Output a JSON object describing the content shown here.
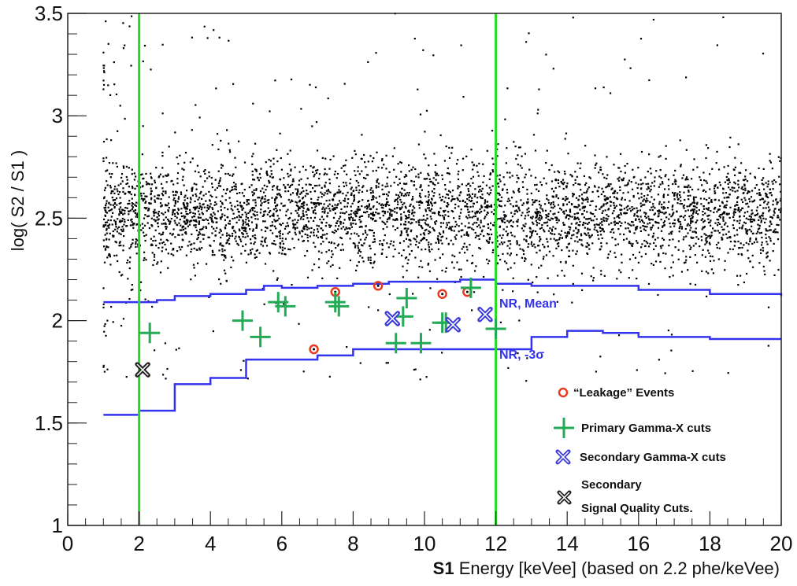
{
  "chart_data": {
    "type": "scatter",
    "xlabel_prefix": "S1",
    "xlabel_rest": " Energy [keVee] (based on 2.2 phe/keVee)",
    "ylabel": "log( S2 / S1 )",
    "xlim": [
      0,
      20
    ],
    "ylim": [
      1,
      3.5
    ],
    "x_ticks": [
      "0",
      "2",
      "4",
      "6",
      "8",
      "10",
      "12",
      "14",
      "16",
      "18",
      "20"
    ],
    "y_ticks": [
      "1",
      "1.5",
      "2",
      "2.5",
      "3",
      "3.5"
    ],
    "grid": false,
    "legend_position": "bottom-right",
    "colors": {
      "background_points": "#000000",
      "threshold_lines": "#22dd22",
      "nr_bands": "#3333ee",
      "leakage": "#e83a1f",
      "primary_cut": "#22aa55",
      "secondary_cut": "#3a3ad8",
      "quality_cut": "#222222"
    },
    "threshold_lines_x": [
      2,
      12
    ],
    "nr_mean": {
      "label": "NR, Mean",
      "steps": [
        [
          1,
          2.09
        ],
        [
          2,
          2.09
        ],
        [
          2.5,
          2.1
        ],
        [
          3,
          2.12
        ],
        [
          4,
          2.13
        ],
        [
          5,
          2.15
        ],
        [
          5.5,
          2.17
        ],
        [
          6,
          2.16
        ],
        [
          7,
          2.17
        ],
        [
          8,
          2.18
        ],
        [
          9,
          2.19
        ],
        [
          10,
          2.19
        ],
        [
          11,
          2.2
        ],
        [
          12,
          2.18
        ],
        [
          13,
          2.17
        ],
        [
          14,
          2.17
        ],
        [
          16,
          2.15
        ],
        [
          18,
          2.13
        ],
        [
          20,
          2.12
        ]
      ]
    },
    "nr_minus3sigma": {
      "label": "NR, -3σ",
      "steps": [
        [
          1,
          1.54
        ],
        [
          2,
          1.56
        ],
        [
          3,
          1.69
        ],
        [
          4,
          1.72
        ],
        [
          5,
          1.81
        ],
        [
          6,
          1.81
        ],
        [
          7,
          1.83
        ],
        [
          8,
          1.86
        ],
        [
          9,
          1.86
        ],
        [
          10,
          1.86
        ],
        [
          11,
          1.86
        ],
        [
          12,
          1.86
        ],
        [
          13,
          1.92
        ],
        [
          14,
          1.95
        ],
        [
          15,
          1.94
        ],
        [
          16,
          1.92
        ],
        [
          18,
          1.91
        ],
        [
          20,
          1.91
        ]
      ]
    },
    "series": [
      {
        "name": "“Leakage” Events",
        "marker": "circle",
        "points": [
          [
            6.9,
            1.86
          ],
          [
            7.5,
            2.14
          ],
          [
            8.7,
            2.17
          ],
          [
            10.5,
            2.13
          ],
          [
            11.2,
            2.14
          ]
        ]
      },
      {
        "name": "Primary Gamma-X cuts",
        "marker": "plus",
        "points": [
          [
            2.3,
            1.94
          ],
          [
            4.9,
            2.0
          ],
          [
            5.4,
            1.92
          ],
          [
            5.9,
            2.09
          ],
          [
            6.1,
            2.07
          ],
          [
            7.5,
            2.09
          ],
          [
            7.6,
            2.07
          ],
          [
            9.2,
            1.89
          ],
          [
            9.4,
            2.02
          ],
          [
            9.5,
            2.11
          ],
          [
            9.9,
            1.89
          ],
          [
            10.5,
            1.99
          ],
          [
            10.6,
            1.99
          ],
          [
            11.3,
            2.16
          ],
          [
            12.0,
            1.96
          ]
        ]
      },
      {
        "name": "Secondary Gamma-X cuts",
        "marker": "xcross",
        "points": [
          [
            9.1,
            2.01
          ],
          [
            10.8,
            1.98
          ],
          [
            11.7,
            2.03
          ]
        ]
      },
      {
        "name_line1": "Secondary",
        "name_line2": "Signal Quality Cuts.",
        "marker": "xcross-dark",
        "points": [
          [
            2.1,
            1.76
          ]
        ]
      }
    ],
    "background_distribution": {
      "description_only_for_generation": false,
      "x_range": [
        1,
        20
      ],
      "center": 2.52,
      "spread": 0.13,
      "count": 4200
    }
  }
}
